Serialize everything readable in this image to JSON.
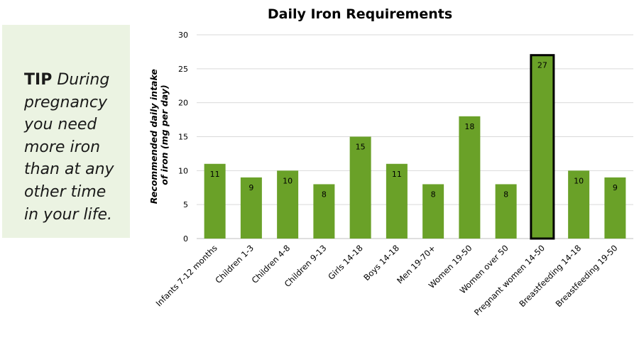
{
  "tip": {
    "label": "TIP",
    "text": "During pregnancy you need more iron than at any other time in your life."
  },
  "colors": {
    "bar": "#6aa128",
    "highlight_border": "#000000",
    "grid": "#d9d9d9",
    "tip_background": "#ebf3e2"
  },
  "chart_data": {
    "type": "bar",
    "title": "Daily Iron Requirements",
    "ylabel": "Recommended daily intake of iron (mg per day)",
    "ylabel_lines": [
      "Recommended daily intake",
      "of iron (mg per day)"
    ],
    "xlabel": "",
    "ylim": [
      0,
      30
    ],
    "yticks": [
      0,
      5,
      10,
      15,
      20,
      25,
      30
    ],
    "grid": true,
    "categories": [
      "Infants 7-12 months",
      "Children 1-3",
      "Children 4-8",
      "Children 9-13",
      "Girls 14-18",
      "Boys 14-18",
      "Men 19-70+",
      "Women 19-50",
      "Women over 50",
      "Pregnant women 14-50",
      "Breastfeeding 14-18",
      "Breastfeeding 19-50"
    ],
    "values": [
      11,
      9,
      10,
      8,
      15,
      11,
      8,
      18,
      8,
      27,
      10,
      9
    ],
    "highlighted": "Pregnant women 14-50"
  }
}
